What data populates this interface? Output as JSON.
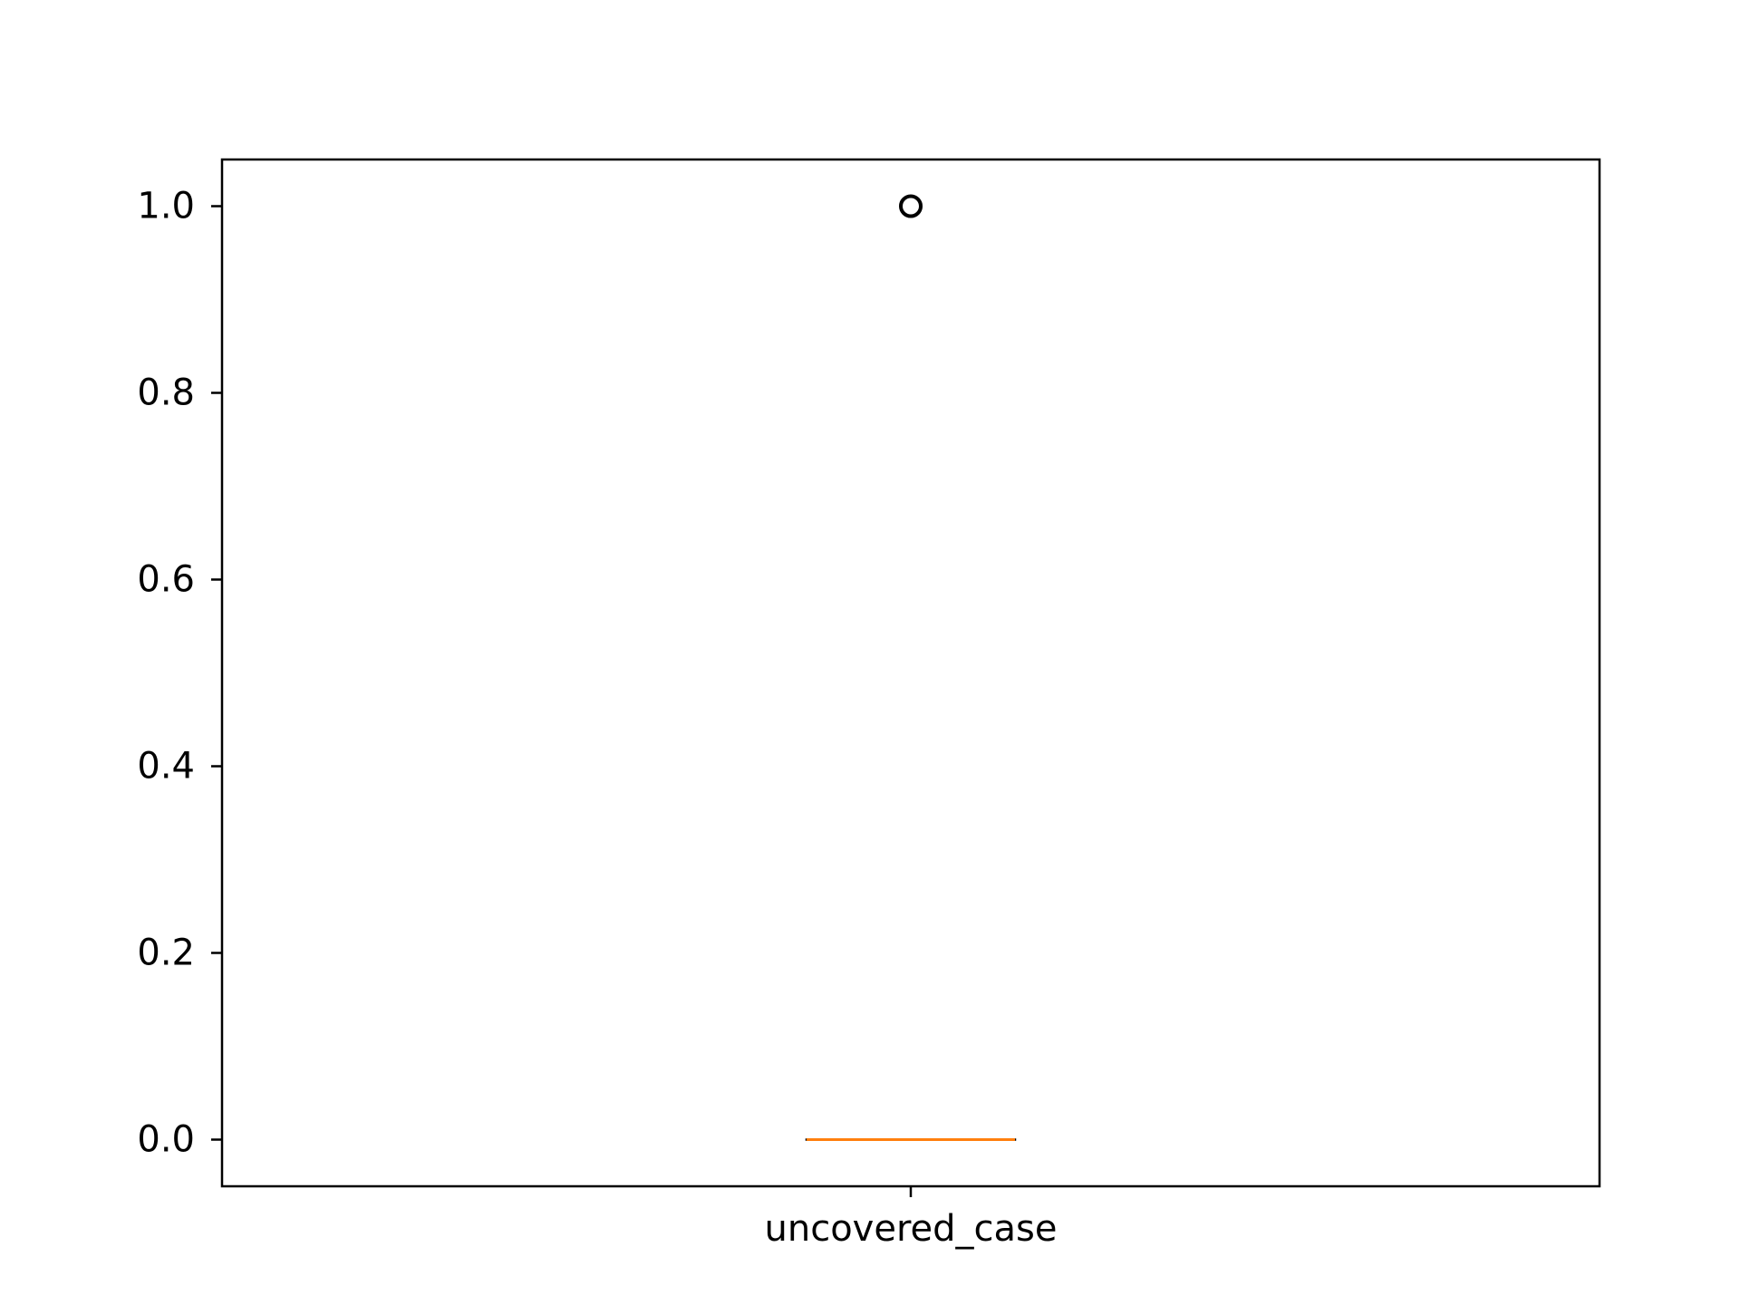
{
  "chart_data": {
    "type": "box",
    "title": "",
    "xlabel": "",
    "ylabel": "",
    "categories": [
      "uncovered_case"
    ],
    "boxes": [
      {
        "category": "uncovered_case",
        "q1": 0.0,
        "median": 0.0,
        "q3": 0.0,
        "whisker_low": 0.0,
        "whisker_high": 0.0,
        "outliers": [
          1.0
        ]
      }
    ],
    "ylim": [
      -0.05,
      1.05
    ],
    "yticks": [
      0.0,
      0.2,
      0.4,
      0.6,
      0.8,
      1.0
    ],
    "ytick_labels": [
      "0.0",
      "0.2",
      "0.4",
      "0.6",
      "0.8",
      "1.0"
    ],
    "grid": false,
    "colors": {
      "median": "#ff7f0e",
      "box": "#000000",
      "outlier": "#000000",
      "axes": "#000000"
    }
  }
}
